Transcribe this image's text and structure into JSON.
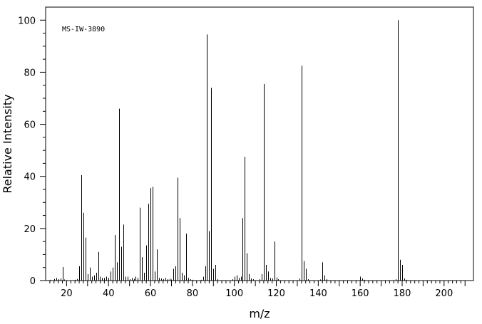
{
  "chart_data": {
    "type": "bar",
    "title": "",
    "annotation": "MS-IW-3890",
    "xlabel": "m/z",
    "ylabel": "Relative Intensity",
    "xlim": [
      10,
      214
    ],
    "ylim": [
      0,
      105
    ],
    "x_ticks": [
      20,
      40,
      60,
      80,
      100,
      120,
      140,
      160,
      180,
      200
    ],
    "y_ticks": [
      0,
      20,
      40,
      60,
      80,
      100
    ],
    "grid": false,
    "peaks": [
      {
        "x": 12,
        "y": 0.3
      },
      {
        "x": 14,
        "y": 0.6
      },
      {
        "x": 15,
        "y": 1.0
      },
      {
        "x": 16,
        "y": 0.5
      },
      {
        "x": 17,
        "y": 0.8
      },
      {
        "x": 18,
        "y": 5.2
      },
      {
        "x": 19,
        "y": 0.4
      },
      {
        "x": 24,
        "y": 0.3
      },
      {
        "x": 25,
        "y": 0.6
      },
      {
        "x": 26,
        "y": 5.5
      },
      {
        "x": 27,
        "y": 40.5
      },
      {
        "x": 28,
        "y": 26.0
      },
      {
        "x": 29,
        "y": 16.5
      },
      {
        "x": 30,
        "y": 2.5
      },
      {
        "x": 31,
        "y": 5.0
      },
      {
        "x": 32,
        "y": 1.5
      },
      {
        "x": 33,
        "y": 2.0
      },
      {
        "x": 34,
        "y": 3.0
      },
      {
        "x": 35,
        "y": 11.0
      },
      {
        "x": 36,
        "y": 1.5
      },
      {
        "x": 37,
        "y": 1.0
      },
      {
        "x": 38,
        "y": 1.0
      },
      {
        "x": 39,
        "y": 1.5
      },
      {
        "x": 40,
        "y": 1.0
      },
      {
        "x": 41,
        "y": 3.5
      },
      {
        "x": 42,
        "y": 5.0
      },
      {
        "x": 43,
        "y": 17.5
      },
      {
        "x": 44,
        "y": 7.0
      },
      {
        "x": 45,
        "y": 66.0
      },
      {
        "x": 46,
        "y": 13.0
      },
      {
        "x": 47,
        "y": 21.5
      },
      {
        "x": 48,
        "y": 1.5
      },
      {
        "x": 49,
        "y": 1.5
      },
      {
        "x": 50,
        "y": 0.5
      },
      {
        "x": 51,
        "y": 1.0
      },
      {
        "x": 52,
        "y": 0.7
      },
      {
        "x": 53,
        "y": 1.5
      },
      {
        "x": 54,
        "y": 1.0
      },
      {
        "x": 55,
        "y": 28.0
      },
      {
        "x": 56,
        "y": 9.0
      },
      {
        "x": 57,
        "y": 3.0
      },
      {
        "x": 58,
        "y": 13.5
      },
      {
        "x": 59,
        "y": 29.5
      },
      {
        "x": 60,
        "y": 35.5
      },
      {
        "x": 61,
        "y": 36.0
      },
      {
        "x": 62,
        "y": 3.5
      },
      {
        "x": 63,
        "y": 12.0
      },
      {
        "x": 64,
        "y": 1.0
      },
      {
        "x": 65,
        "y": 0.8
      },
      {
        "x": 66,
        "y": 0.5
      },
      {
        "x": 67,
        "y": 1.0
      },
      {
        "x": 68,
        "y": 0.5
      },
      {
        "x": 69,
        "y": 0.8
      },
      {
        "x": 70,
        "y": 0.4
      },
      {
        "x": 71,
        "y": 4.5
      },
      {
        "x": 72,
        "y": 5.5
      },
      {
        "x": 73,
        "y": 39.5
      },
      {
        "x": 74,
        "y": 24.0
      },
      {
        "x": 75,
        "y": 3.0
      },
      {
        "x": 76,
        "y": 2.0
      },
      {
        "x": 77,
        "y": 18.0
      },
      {
        "x": 78,
        "y": 1.0
      },
      {
        "x": 79,
        "y": 0.5
      },
      {
        "x": 80,
        "y": 0.3
      },
      {
        "x": 84,
        "y": 0.3
      },
      {
        "x": 85,
        "y": 1.5
      },
      {
        "x": 86,
        "y": 5.5
      },
      {
        "x": 87,
        "y": 94.5
      },
      {
        "x": 88,
        "y": 19.0
      },
      {
        "x": 89,
        "y": 74.0
      },
      {
        "x": 90,
        "y": 4.5
      },
      {
        "x": 91,
        "y": 6.0
      },
      {
        "x": 92,
        "y": 0.5
      },
      {
        "x": 99,
        "y": 0.5
      },
      {
        "x": 100,
        "y": 1.5
      },
      {
        "x": 101,
        "y": 2.0
      },
      {
        "x": 102,
        "y": 1.0
      },
      {
        "x": 103,
        "y": 1.5
      },
      {
        "x": 104,
        "y": 24.0
      },
      {
        "x": 105,
        "y": 47.5
      },
      {
        "x": 106,
        "y": 10.5
      },
      {
        "x": 107,
        "y": 2.5
      },
      {
        "x": 108,
        "y": 0.8
      },
      {
        "x": 109,
        "y": 0.5
      },
      {
        "x": 112,
        "y": 0.5
      },
      {
        "x": 113,
        "y": 2.5
      },
      {
        "x": 114,
        "y": 75.5
      },
      {
        "x": 115,
        "y": 6.0
      },
      {
        "x": 116,
        "y": 3.5
      },
      {
        "x": 117,
        "y": 1.0
      },
      {
        "x": 118,
        "y": 0.8
      },
      {
        "x": 119,
        "y": 15.0
      },
      {
        "x": 120,
        "y": 1.2
      },
      {
        "x": 121,
        "y": 0.5
      },
      {
        "x": 131,
        "y": 0.8
      },
      {
        "x": 132,
        "y": 82.5
      },
      {
        "x": 133,
        "y": 7.5
      },
      {
        "x": 134,
        "y": 4.5
      },
      {
        "x": 135,
        "y": 0.5
      },
      {
        "x": 141,
        "y": 0.4
      },
      {
        "x": 142,
        "y": 7.0
      },
      {
        "x": 143,
        "y": 2.0
      },
      {
        "x": 144,
        "y": 0.5
      },
      {
        "x": 160,
        "y": 1.5
      },
      {
        "x": 161,
        "y": 0.8
      },
      {
        "x": 162,
        "y": 0.3
      },
      {
        "x": 177,
        "y": 0.5
      },
      {
        "x": 178,
        "y": 100.0
      },
      {
        "x": 179,
        "y": 8.0
      },
      {
        "x": 180,
        "y": 6.0
      },
      {
        "x": 181,
        "y": 0.8
      },
      {
        "x": 182,
        "y": 0.3
      }
    ]
  }
}
